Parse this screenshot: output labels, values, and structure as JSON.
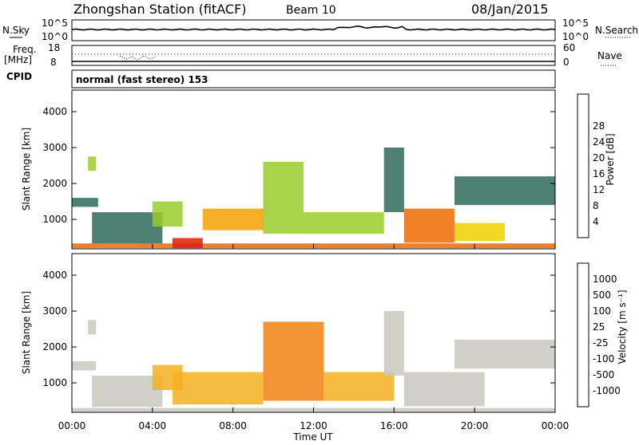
{
  "header": {
    "station": "Zhongshan Station (fitACF)",
    "beam": "Beam 10",
    "date": "08/Jan/2015"
  },
  "top_panels": {
    "nsky_label": "N.Sky",
    "nsearch_label": "N.Search",
    "noise_ticks": [
      "10^5",
      "10^0"
    ],
    "freq_label": "Freq.",
    "freq_unit": "[MHz]",
    "freq_ticks": [
      "18",
      "8"
    ],
    "nave_label": "Nave",
    "nave_ticks": [
      "60",
      "0"
    ],
    "cpid_label": "CPID",
    "cpid_text": "normal (fast stereo) 153"
  },
  "power_panel": {
    "ylabel": "Slant Range [km]",
    "yticks": [
      "1000",
      "2000",
      "3000",
      "4000"
    ],
    "colorbar_label": "Power [dB]",
    "colorbar_ticks": [
      "4",
      "8",
      "12",
      "16",
      "20",
      "24",
      "28"
    ],
    "colorbar_colors": [
      "#1a1aff",
      "#2a4bb0",
      "#2f6b5a",
      "#4a8f4a",
      "#9acb2a",
      "#f0d000",
      "#f5a000",
      "#ee6a00",
      "#e11f00"
    ]
  },
  "velocity_panel": {
    "ylabel": "Slant Range [km]",
    "yticks": [
      "1000",
      "2000",
      "3000",
      "4000"
    ],
    "colorbar_label": "Velocity [m s⁻¹]",
    "colorbar_ticks": [
      "1000",
      "500",
      "100",
      "25",
      "-25",
      "-100",
      "-500",
      "-1000"
    ],
    "colorbar_colors": [
      "#2040b0",
      "#2f6fa0",
      "#3f8f6a",
      "#6ab04a",
      "#c8c8c0",
      "#f5b020",
      "#f08010",
      "#e85a10",
      "#e01a10"
    ]
  },
  "xaxis": {
    "label": "Time UT",
    "ticks": [
      "00:00",
      "04:00",
      "08:00",
      "12:00",
      "16:00",
      "20:00",
      "00:00"
    ]
  },
  "chart_data": [
    {
      "type": "heatmap",
      "title": "Power",
      "xlabel": "Time UT",
      "ylabel": "Slant Range [km]",
      "xlim": [
        0,
        24
      ],
      "ylim": [
        180,
        4600
      ],
      "colorbar": "Power [dB]",
      "clim": [
        0,
        30
      ],
      "regions": [
        {
          "t0": 0.0,
          "t1": 24.0,
          "r0": 200,
          "r1": 330,
          "value": 26
        },
        {
          "t0": 0.0,
          "t1": 1.3,
          "r0": 1350,
          "r1": 1600,
          "value": 7
        },
        {
          "t0": 0.8,
          "t1": 1.2,
          "r0": 2350,
          "r1": 2750,
          "value": 14
        },
        {
          "t0": 1.0,
          "t1": 4.5,
          "r0": 330,
          "r1": 1200,
          "value": 8
        },
        {
          "t0": 4.0,
          "t1": 5.5,
          "r0": 800,
          "r1": 1500,
          "value": 16
        },
        {
          "t0": 5.0,
          "t1": 6.5,
          "r0": 200,
          "r1": 480,
          "value": 28
        },
        {
          "t0": 6.5,
          "t1": 9.5,
          "r0": 700,
          "r1": 1300,
          "value": 20
        },
        {
          "t0": 9.5,
          "t1": 11.5,
          "r0": 600,
          "r1": 2600,
          "value": 16
        },
        {
          "t0": 11.5,
          "t1": 15.5,
          "r0": 600,
          "r1": 1200,
          "value": 14
        },
        {
          "t0": 15.5,
          "t1": 16.5,
          "r0": 1200,
          "r1": 3000,
          "value": 8
        },
        {
          "t0": 16.5,
          "t1": 19.0,
          "r0": 350,
          "r1": 1300,
          "value": 26
        },
        {
          "t0": 19.0,
          "t1": 21.5,
          "r0": 400,
          "r1": 900,
          "value": 18
        },
        {
          "t0": 19.0,
          "t1": 24.0,
          "r0": 1400,
          "r1": 2200,
          "value": 7
        }
      ]
    },
    {
      "type": "heatmap",
      "title": "Velocity",
      "xlabel": "Time UT",
      "ylabel": "Slant Range [km]",
      "xlim": [
        0,
        24
      ],
      "ylim": [
        180,
        4600
      ],
      "colorbar": "Velocity [m s⁻¹]",
      "clim": [
        -1000,
        1000
      ],
      "regions": [
        {
          "t0": 0.0,
          "t1": 24.0,
          "r0": 200,
          "r1": 300,
          "value": 50
        },
        {
          "t0": 0.0,
          "t1": 1.2,
          "r0": 1350,
          "r1": 1600,
          "value": 0
        },
        {
          "t0": 0.8,
          "t1": 1.2,
          "r0": 2350,
          "r1": 2750,
          "value": -100
        },
        {
          "t0": 1.0,
          "t1": 4.5,
          "r0": 330,
          "r1": 1200,
          "value": 80
        },
        {
          "t0": 4.0,
          "t1": 5.5,
          "r0": 800,
          "r1": 1500,
          "value": -150
        },
        {
          "t0": 5.0,
          "t1": 9.5,
          "r0": 400,
          "r1": 1300,
          "value": -300
        },
        {
          "t0": 9.5,
          "t1": 12.5,
          "r0": 500,
          "r1": 2700,
          "value": -400
        },
        {
          "t0": 12.5,
          "t1": 16.0,
          "r0": 500,
          "r1": 1300,
          "value": -250
        },
        {
          "t0": 15.5,
          "t1": 16.5,
          "r0": 1200,
          "r1": 3000,
          "value": -80
        },
        {
          "t0": 16.5,
          "t1": 20.5,
          "r0": 350,
          "r1": 1300,
          "value": 60
        },
        {
          "t0": 19.0,
          "t1": 24.0,
          "r0": 1400,
          "r1": 2200,
          "value": 0
        }
      ]
    }
  ]
}
